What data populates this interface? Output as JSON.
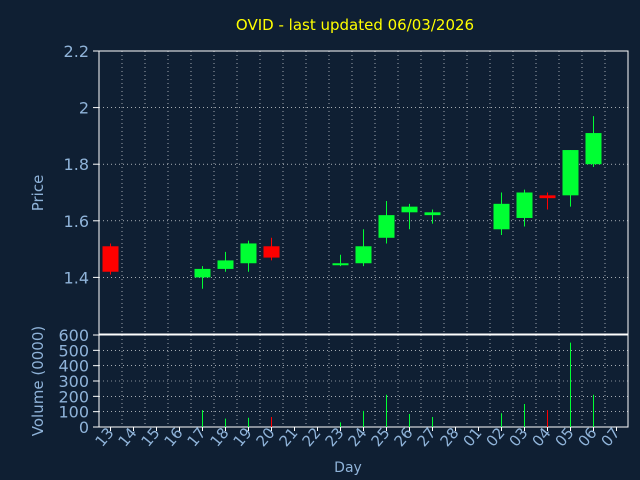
{
  "chart_data": {
    "type": "candlestick",
    "title": "OVID - last updated 06/03/2026",
    "xlabel": "Day",
    "price_panel": {
      "ylabel": "Price",
      "ylim": [
        1.2,
        2.2
      ],
      "yticks": [
        "1.4",
        "1.6",
        "1.8",
        "2",
        "2.2"
      ],
      "grid": true
    },
    "volume_panel": {
      "ylabel": "Volume (0000)",
      "ylim": [
        0,
        600
      ],
      "yticks": [
        "0",
        "100",
        "200",
        "300",
        "400",
        "500",
        "600"
      ],
      "grid": true
    },
    "x_ticks": [
      "13",
      "14",
      "15",
      "16",
      "17",
      "18",
      "19",
      "20",
      "21",
      "22",
      "23",
      "24",
      "25",
      "26",
      "27",
      "28",
      "01",
      "02",
      "03",
      "04",
      "05",
      "06",
      "07"
    ],
    "candles": [
      {
        "day": "13",
        "open": 1.51,
        "high": 1.52,
        "low": 1.41,
        "close": 1.42,
        "volume": 0
      },
      {
        "day": "17",
        "open": 1.4,
        "high": 1.44,
        "low": 1.36,
        "close": 1.43,
        "volume": 110
      },
      {
        "day": "18",
        "open": 1.43,
        "high": 1.49,
        "low": 1.42,
        "close": 1.46,
        "volume": 55
      },
      {
        "day": "19",
        "open": 1.45,
        "high": 1.53,
        "low": 1.42,
        "close": 1.52,
        "volume": 60
      },
      {
        "day": "20",
        "open": 1.51,
        "high": 1.54,
        "low": 1.46,
        "close": 1.47,
        "volume": 65
      },
      {
        "day": "23",
        "open": 1.445,
        "high": 1.48,
        "low": 1.44,
        "close": 1.45,
        "volume": 30
      },
      {
        "day": "24",
        "open": 1.45,
        "high": 1.57,
        "low": 1.44,
        "close": 1.51,
        "volume": 105
      },
      {
        "day": "25",
        "open": 1.54,
        "high": 1.67,
        "low": 1.52,
        "close": 1.62,
        "volume": 210
      },
      {
        "day": "26",
        "open": 1.63,
        "high": 1.66,
        "low": 1.57,
        "close": 1.65,
        "volume": 85
      },
      {
        "day": "27",
        "open": 1.62,
        "high": 1.64,
        "low": 1.59,
        "close": 1.63,
        "volume": 65
      },
      {
        "day": "02",
        "open": 1.57,
        "high": 1.7,
        "low": 1.55,
        "close": 1.66,
        "volume": 90
      },
      {
        "day": "03",
        "open": 1.61,
        "high": 1.71,
        "low": 1.58,
        "close": 1.7,
        "volume": 150
      },
      {
        "day": "04",
        "open": 1.69,
        "high": 1.7,
        "low": 1.64,
        "close": 1.68,
        "volume": 110
      },
      {
        "day": "05",
        "open": 1.69,
        "high": 1.85,
        "low": 1.65,
        "close": 1.85,
        "volume": 550
      },
      {
        "day": "06",
        "open": 1.8,
        "high": 1.97,
        "low": 1.79,
        "close": 1.91,
        "volume": 210
      }
    ],
    "colors": {
      "background": "#0f1f33",
      "plot_border": "#ffffff",
      "grid": "#ffffff",
      "up": "#00ff33",
      "down": "#ff0000",
      "title": "#ffff00",
      "tick_label": "#8fb3d9",
      "axis_label": "#8fb3d9"
    }
  }
}
